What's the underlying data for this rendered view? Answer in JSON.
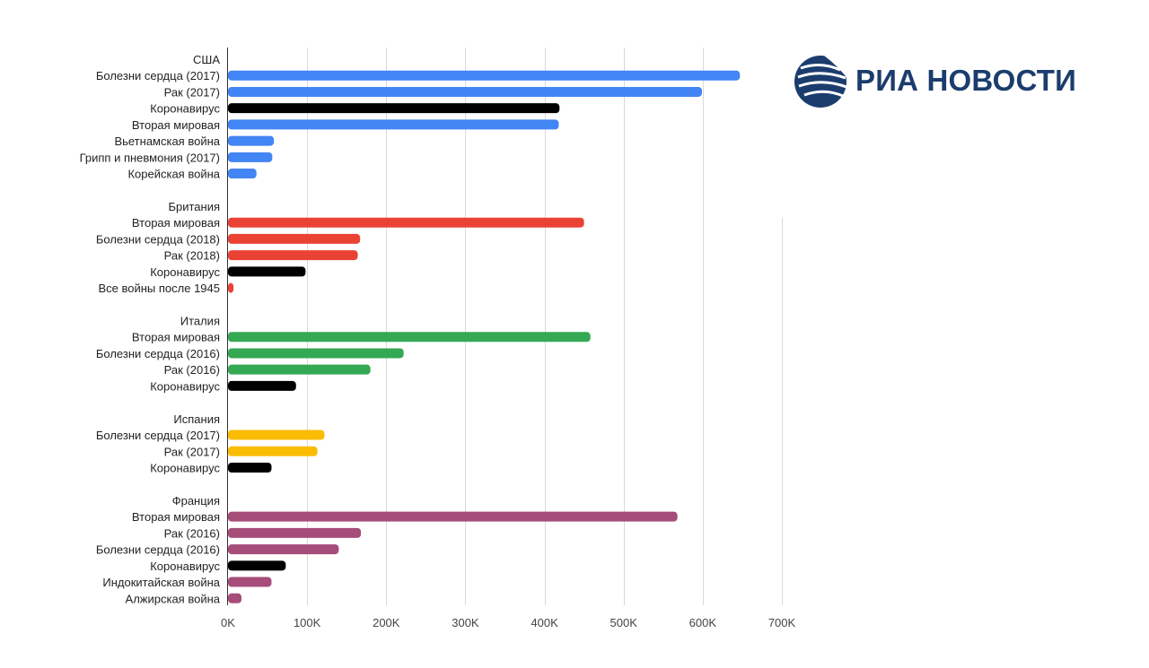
{
  "brand": {
    "name": "РИА НОВОСТИ",
    "logo_color": "#1b3d6e"
  },
  "chart_data": {
    "type": "bar",
    "orientation": "horizontal",
    "title": "",
    "xlabel": "",
    "ylabel": "",
    "xlim": [
      0,
      700000
    ],
    "grid": true,
    "x_ticks": [
      {
        "value": 0,
        "label": "0K"
      },
      {
        "value": 100000,
        "label": "100K"
      },
      {
        "value": 200000,
        "label": "200K"
      },
      {
        "value": 300000,
        "label": "300K"
      },
      {
        "value": 400000,
        "label": "400K"
      },
      {
        "value": 500000,
        "label": "500K"
      },
      {
        "value": 600000,
        "label": "600K"
      },
      {
        "value": 700000,
        "label": "700K"
      }
    ],
    "groups": [
      {
        "name": "США",
        "color": "#4285f4",
        "bars": [
          {
            "label": "Болезни сердца (2017)",
            "value": 647000
          },
          {
            "label": "Рак (2017)",
            "value": 599000
          },
          {
            "label": "Коронавирус",
            "value": 419000,
            "color": "#000000"
          },
          {
            "label": "Вторая мировая",
            "value": 418000
          },
          {
            "label": "Вьетнамская война",
            "value": 58000
          },
          {
            "label": "Грипп и пневмония (2017)",
            "value": 56000
          },
          {
            "label": "Корейская война",
            "value": 36000
          }
        ]
      },
      {
        "name": "Британия",
        "color": "#ea4335",
        "bars": [
          {
            "label": "Вторая мировая",
            "value": 450000
          },
          {
            "label": "Болезни сердца (2018)",
            "value": 167000
          },
          {
            "label": "Рак (2018)",
            "value": 164000
          },
          {
            "label": "Коронавирус",
            "value": 98000,
            "color": "#000000"
          },
          {
            "label": "Все войны после 1945",
            "value": 7000
          }
        ]
      },
      {
        "name": "Италия",
        "color": "#34a853",
        "bars": [
          {
            "label": "Вторая мировая",
            "value": 458000
          },
          {
            "label": "Болезни сердца (2016)",
            "value": 222000
          },
          {
            "label": "Рак (2016)",
            "value": 180000
          },
          {
            "label": "Коронавирус",
            "value": 86000,
            "color": "#000000"
          }
        ]
      },
      {
        "name": "Испания",
        "color": "#fbbc04",
        "bars": [
          {
            "label": "Болезни сердца (2017)",
            "value": 122000
          },
          {
            "label": "Рак (2017)",
            "value": 113000
          },
          {
            "label": "Коронавирус",
            "value": 55000,
            "color": "#000000"
          }
        ]
      },
      {
        "name": "Франция",
        "color": "#a64d79",
        "bars": [
          {
            "label": "Вторая мировая",
            "value": 568000
          },
          {
            "label": "Рак (2016)",
            "value": 168000
          },
          {
            "label": "Болезни сердца (2016)",
            "value": 140000
          },
          {
            "label": "Коронавирус",
            "value": 73000,
            "color": "#000000"
          },
          {
            "label": "Индокитайская война",
            "value": 55000
          },
          {
            "label": "Алжирская война",
            "value": 17000
          }
        ]
      }
    ]
  }
}
